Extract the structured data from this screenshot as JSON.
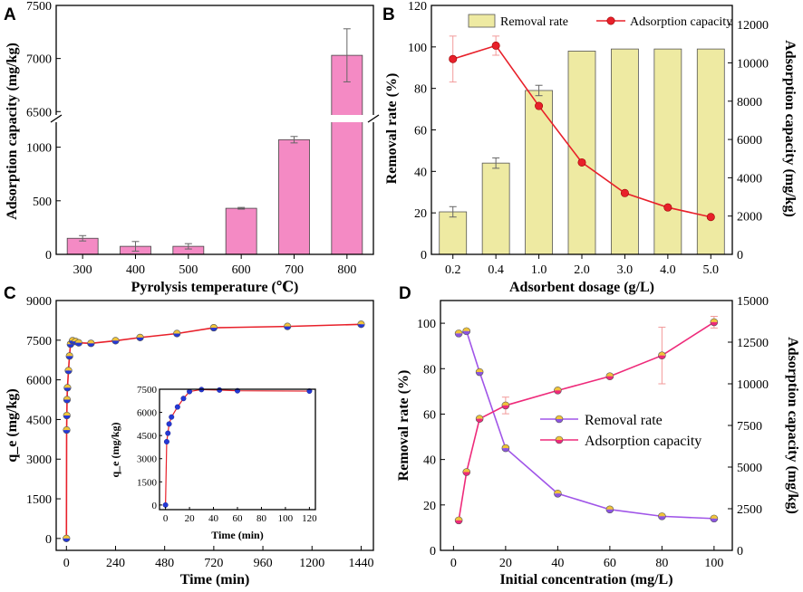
{
  "chart_data": [
    {
      "panel": "A",
      "type": "bar",
      "categories": [
        "300",
        "400",
        "500",
        "600",
        "700",
        "800"
      ],
      "values": [
        150,
        75,
        75,
        430,
        1070,
        7030
      ],
      "errors": [
        25,
        45,
        25,
        8,
        30,
        250
      ],
      "xlabel": "Pyrolysis temperature (℃)",
      "ylabel": "Adsorption capacity (mg/kg)",
      "ylim_lower": [
        0,
        1250
      ],
      "ylim_upper": [
        6400,
        7500
      ],
      "yticks_lower": [
        "0",
        "500",
        "1000"
      ],
      "yticks_upper": [
        "6500",
        "7000",
        "7500"
      ],
      "bar_color": "#f48ac4"
    },
    {
      "panel": "B",
      "type": "bar",
      "categories": [
        "0.2",
        "0.4",
        "1.0",
        "2.0",
        "3.0",
        "4.0",
        "5.0"
      ],
      "series": [
        {
          "name": "Removal rate",
          "axis": "left",
          "values": [
            20.5,
            44,
            79,
            98,
            99,
            99,
            99
          ],
          "errors": [
            2.5,
            2.5,
            2.5,
            0,
            0,
            0,
            0
          ],
          "color": "#eeeaa2"
        },
        {
          "name": "Adsorption capacity",
          "axis": "right",
          "values": [
            10200,
            10900,
            7750,
            4800,
            3200,
            2450,
            1950
          ],
          "errors": [
            1200,
            500,
            0,
            0,
            0,
            0,
            0
          ],
          "color": "#e8202a"
        }
      ],
      "xlabel": "Adsorbent dosage (g/L)",
      "ylabel": "Removal rate (%)",
      "ylabel_right": "Adsorption capacity (mg/kg)",
      "ylim": [
        0,
        120
      ],
      "ylim_right": [
        0,
        13000
      ],
      "yticks": [
        "0",
        "20",
        "40",
        "60",
        "80",
        "100",
        "120"
      ],
      "yticks_right": [
        "0",
        "2000",
        "4000",
        "6000",
        "8000",
        "10000",
        "12000"
      ]
    },
    {
      "panel": "C",
      "type": "line",
      "x": [
        0,
        1,
        2,
        3,
        5,
        10,
        15,
        20,
        30,
        45,
        60,
        120,
        240,
        360,
        540,
        720,
        1080,
        1440
      ],
      "values": [
        0,
        4100,
        4650,
        5250,
        5700,
        6350,
        6900,
        7350,
        7480,
        7450,
        7400,
        7380,
        7480,
        7600,
        7750,
        7970,
        8020,
        8100
      ],
      "xlabel": "Time (min)",
      "ylabel": "q_e (mg/kg)",
      "xlim": [
        -50,
        1500
      ],
      "ylim": [
        -450,
        9000
      ],
      "xticks": [
        "0",
        "240",
        "480",
        "720",
        "960",
        "1200",
        "1440"
      ],
      "yticks": [
        "0",
        "1500",
        "3000",
        "4500",
        "6000",
        "7500",
        "9000"
      ],
      "line_color": "#e8202a",
      "inset": {
        "x": [
          0,
          1,
          2,
          3,
          5,
          10,
          15,
          20,
          30,
          45,
          60,
          120
        ],
        "values": [
          0,
          4100,
          4650,
          5250,
          5700,
          6350,
          6900,
          7350,
          7480,
          7450,
          7400,
          7380
        ],
        "xlabel": "Time (min)",
        "ylabel": "q_e (mg/kg)",
        "xlim": [
          -5,
          125
        ],
        "ylim": [
          -300,
          7500
        ],
        "xticks": [
          "0",
          "20",
          "40",
          "60",
          "80",
          "100",
          "120"
        ],
        "yticks": [
          "0",
          "1500",
          "3000",
          "4500",
          "6000",
          "7500"
        ]
      }
    },
    {
      "panel": "D",
      "type": "line",
      "x": [
        2,
        5,
        10,
        20,
        40,
        60,
        80,
        100
      ],
      "series": [
        {
          "name": "Removal rate",
          "axis": "left",
          "values": [
            95.5,
            96.5,
            78.5,
            45,
            25,
            18,
            15,
            14
          ],
          "color": "#a055e8"
        },
        {
          "name": "Adsorption capacity",
          "axis": "right",
          "values": [
            1800,
            4700,
            7900,
            8700,
            9600,
            10450,
            11700,
            13700
          ],
          "errors": [
            0,
            0,
            0,
            500,
            0,
            0,
            1700,
            350
          ],
          "color": "#ee2a7a"
        }
      ],
      "xlabel": "Initial concentration (mg/L)",
      "ylabel": "Removal rate (%)",
      "ylabel_right": "Adsorption capacity (mg/kg)",
      "xlim": [
        -5,
        107
      ],
      "ylim": [
        0,
        110
      ],
      "ylim_right": [
        0,
        15000
      ],
      "xticks": [
        "0",
        "20",
        "40",
        "60",
        "80",
        "100"
      ],
      "yticks": [
        "0",
        "20",
        "40",
        "60",
        "80",
        "100"
      ],
      "yticks_right": [
        "0",
        "2500",
        "5000",
        "7500",
        "10000",
        "12500",
        "15000"
      ]
    }
  ]
}
